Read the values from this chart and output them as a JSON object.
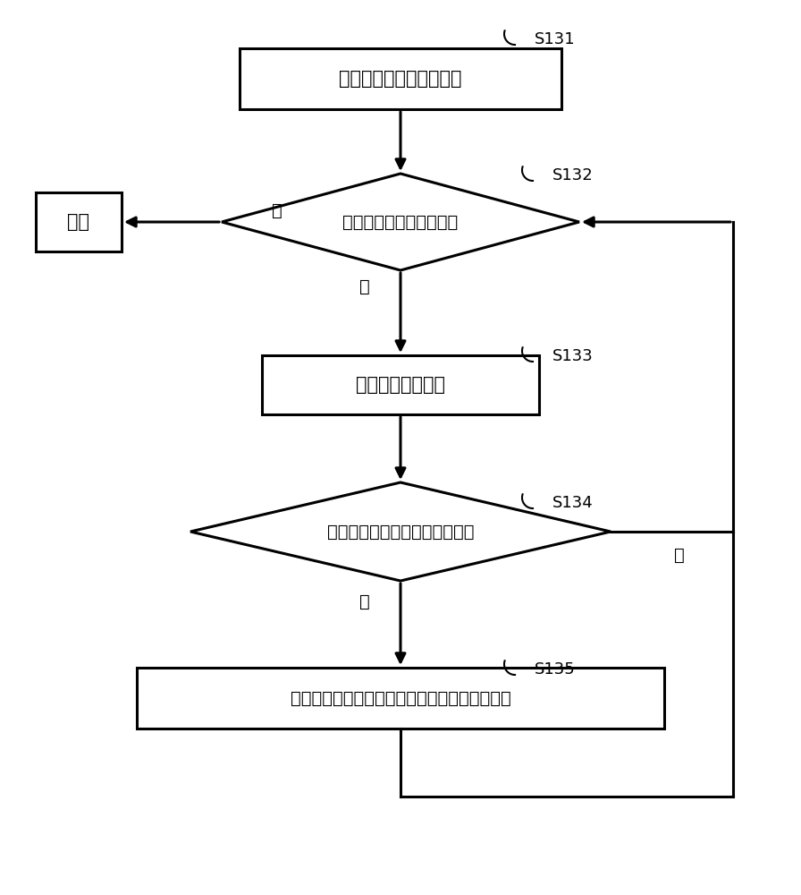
{
  "bg_color": "#ffffff",
  "line_color": "#000000",
  "text_color": "#000000",
  "font_size": 15,
  "label_font_size": 13,
  "s131_label": "初始化所有模型的参数。",
  "s132_label": "判断是否到达循环次数。",
  "exit_label": "退出",
  "s133_label": "期望步与最大化步",
  "s134_label": "判断是否有模型塌缩为点或线。",
  "s135_label": "删除该模型，归一化此模型所属点的后验概率。",
  "yes1": "是",
  "no1": "否",
  "yes2": "是",
  "no2": "否",
  "step1": "S131",
  "step2": "S132",
  "step3": "S133",
  "step4": "S134",
  "step5": "S135"
}
